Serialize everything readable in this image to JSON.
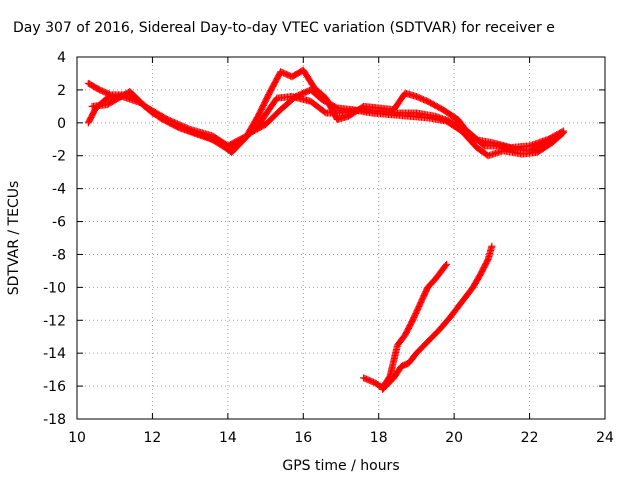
{
  "chart_data": {
    "type": "scatter",
    "title": "Day 307 of 2016, Sidereal Day-to-day VTEC variation (SDTVAR) for receiver e",
    "xlabel": "GPS time / hours",
    "ylabel": "SDTVAR / TECUs",
    "xlim": [
      10,
      24
    ],
    "ylim": [
      -18,
      4
    ],
    "xticks": [
      10,
      12,
      14,
      16,
      18,
      20,
      22,
      24
    ],
    "yticks": [
      -18,
      -16,
      -14,
      -12,
      -10,
      -8,
      -6,
      -4,
      -2,
      0,
      2,
      4
    ],
    "grid": true,
    "marker": "plus",
    "color": "#ff0000",
    "series": [
      {
        "values": [
          [
            10.3,
            2.4
          ],
          [
            10.6,
            2.0
          ],
          [
            10.9,
            1.7
          ],
          [
            11.3,
            1.7
          ],
          [
            11.6,
            1.4
          ],
          [
            12.0,
            0.6
          ],
          [
            12.5,
            0.0
          ],
          [
            13.0,
            -0.5
          ],
          [
            13.5,
            -0.9
          ],
          [
            14.0,
            -1.6
          ],
          [
            14.4,
            -1.0
          ],
          [
            14.8,
            -0.2
          ],
          [
            15.0,
            0.5
          ],
          [
            15.3,
            1.5
          ],
          [
            15.7,
            1.6
          ],
          [
            16.2,
            1.3
          ],
          [
            16.6,
            0.6
          ],
          [
            17.0,
            0.6
          ],
          [
            17.5,
            0.8
          ],
          [
            18.0,
            0.7
          ],
          [
            18.5,
            0.6
          ],
          [
            19.0,
            0.6
          ],
          [
            19.5,
            0.4
          ],
          [
            20.0,
            0.0
          ],
          [
            20.4,
            -0.6
          ],
          [
            20.8,
            -1.4
          ],
          [
            21.2,
            -1.4
          ],
          [
            21.6,
            -1.6
          ],
          [
            22.0,
            -1.7
          ],
          [
            22.4,
            -1.3
          ],
          [
            22.8,
            -0.7
          ]
        ]
      },
      {
        "values": [
          [
            10.3,
            0.0
          ],
          [
            10.5,
            0.9
          ],
          [
            10.8,
            1.5
          ],
          [
            11.2,
            1.6
          ],
          [
            11.7,
            1.2
          ],
          [
            12.2,
            0.3
          ],
          [
            12.7,
            -0.3
          ],
          [
            13.2,
            -0.7
          ],
          [
            13.7,
            -1.1
          ],
          [
            14.1,
            -1.8
          ],
          [
            14.6,
            -0.6
          ],
          [
            15.0,
            -0.1
          ],
          [
            15.4,
            0.8
          ],
          [
            15.8,
            1.6
          ],
          [
            16.2,
            2.0
          ],
          [
            16.5,
            1.4
          ],
          [
            16.9,
            0.9
          ],
          [
            17.3,
            0.8
          ],
          [
            17.8,
            0.6
          ],
          [
            18.3,
            0.5
          ],
          [
            18.8,
            0.4
          ],
          [
            19.3,
            0.3
          ],
          [
            19.8,
            0.1
          ],
          [
            20.2,
            -0.5
          ],
          [
            20.6,
            -1.5
          ],
          [
            20.9,
            -2.0
          ],
          [
            21.3,
            -1.7
          ],
          [
            21.8,
            -1.9
          ],
          [
            22.2,
            -1.8
          ],
          [
            22.6,
            -1.2
          ],
          [
            22.9,
            -0.6
          ]
        ]
      },
      {
        "values": [
          [
            10.4,
            1.0
          ],
          [
            10.8,
            1.1
          ],
          [
            11.4,
            1.9
          ],
          [
            11.8,
            1.0
          ],
          [
            12.4,
            0.2
          ],
          [
            13.0,
            -0.4
          ],
          [
            13.6,
            -0.8
          ],
          [
            14.0,
            -1.4
          ],
          [
            14.5,
            -0.8
          ],
          [
            14.8,
            0.4
          ],
          [
            15.1,
            1.8
          ],
          [
            15.4,
            3.1
          ],
          [
            15.7,
            2.8
          ],
          [
            16.0,
            3.2
          ],
          [
            16.3,
            2.1
          ],
          [
            16.6,
            1.5
          ],
          [
            16.9,
            0.2
          ],
          [
            17.2,
            0.4
          ],
          [
            17.6,
            1.0
          ],
          [
            18.0,
            0.9
          ],
          [
            18.4,
            0.8
          ],
          [
            18.7,
            1.8
          ],
          [
            19.0,
            1.6
          ],
          [
            19.3,
            1.3
          ],
          [
            19.7,
            0.8
          ],
          [
            20.1,
            0.2
          ],
          [
            20.5,
            -1.0
          ],
          [
            21.0,
            -1.2
          ],
          [
            21.5,
            -1.5
          ],
          [
            22.0,
            -1.4
          ],
          [
            22.5,
            -1.0
          ],
          [
            22.9,
            -0.5
          ]
        ]
      },
      {
        "values": [
          [
            17.6,
            -15.5
          ],
          [
            17.9,
            -15.8
          ],
          [
            18.1,
            -16.1
          ],
          [
            18.3,
            -15.4
          ],
          [
            18.5,
            -13.5
          ],
          [
            18.7,
            -12.9
          ],
          [
            18.9,
            -12.0
          ],
          [
            19.1,
            -11.0
          ],
          [
            19.3,
            -10.0
          ],
          [
            19.5,
            -9.5
          ],
          [
            19.8,
            -8.6
          ]
        ]
      },
      {
        "values": [
          [
            18.1,
            -16.2
          ],
          [
            18.4,
            -15.5
          ],
          [
            18.6,
            -14.8
          ],
          [
            18.8,
            -14.6
          ],
          [
            19.0,
            -14.0
          ],
          [
            19.3,
            -13.3
          ],
          [
            19.6,
            -12.6
          ],
          [
            19.9,
            -11.8
          ],
          [
            20.1,
            -11.2
          ],
          [
            20.3,
            -10.6
          ],
          [
            20.5,
            -10.0
          ],
          [
            20.7,
            -9.2
          ],
          [
            20.9,
            -8.3
          ],
          [
            21.0,
            -7.5
          ]
        ]
      }
    ]
  }
}
